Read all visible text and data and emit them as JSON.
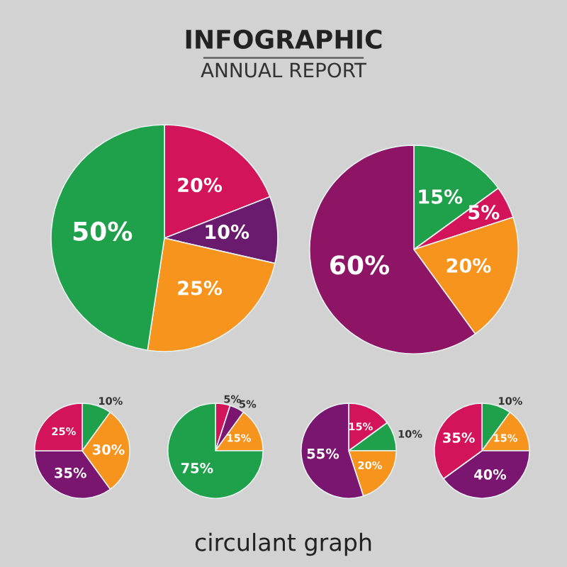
{
  "chart_data": [
    {
      "type": "pie",
      "title": "INFOGRAPHIC",
      "subtitle": "ANNUAL REPORT",
      "categories": [
        null,
        null,
        null,
        null
      ],
      "values": [
        20,
        10,
        25,
        50
      ],
      "value_labels": [
        "20%",
        "10%",
        "25%",
        "50%"
      ],
      "colors": [
        "#d4145a",
        "#6a1b6e",
        "#f7941d",
        "#1fa04a"
      ]
    },
    {
      "type": "pie",
      "categories": [
        null,
        null,
        null,
        null
      ],
      "values": [
        15,
        5,
        20,
        60
      ],
      "value_labels": [
        "15%",
        "5%",
        "20%",
        "60%"
      ],
      "colors": [
        "#1fa04a",
        "#d4145a",
        "#f7941d",
        "#8e1466"
      ]
    },
    {
      "type": "pie",
      "categories": [
        null,
        null,
        null,
        null
      ],
      "values": [
        10,
        30,
        35,
        25
      ],
      "value_labels": [
        "10%",
        "30%",
        "35%",
        "25%"
      ],
      "colors": [
        "#1fa04a",
        "#f7941d",
        "#7a1570",
        "#d4145a"
      ]
    },
    {
      "type": "pie",
      "categories": [
        null,
        null,
        null,
        null
      ],
      "values": [
        5,
        5,
        15,
        75
      ],
      "value_labels": [
        "5%",
        "5%",
        "15%",
        "75%"
      ],
      "colors": [
        "#d4145a",
        "#7a1570",
        "#f7941d",
        "#1fa04a"
      ]
    },
    {
      "type": "pie",
      "categories": [
        null,
        null,
        null,
        null
      ],
      "values": [
        15,
        10,
        20,
        55
      ],
      "value_labels": [
        "15%",
        "10%",
        "20%",
        "55%"
      ],
      "colors": [
        "#d4145a",
        "#1fa04a",
        "#f7941d",
        "#7a1570"
      ]
    },
    {
      "type": "pie",
      "categories": [
        null,
        null,
        null,
        null
      ],
      "values": [
        10,
        15,
        40,
        35
      ],
      "value_labels": [
        "10%",
        "15%",
        "40%",
        "35%"
      ],
      "colors": [
        "#1fa04a",
        "#f7941d",
        "#7a1570",
        "#d4145a"
      ],
      "annotations": [
        "circulant graph"
      ]
    }
  ]
}
